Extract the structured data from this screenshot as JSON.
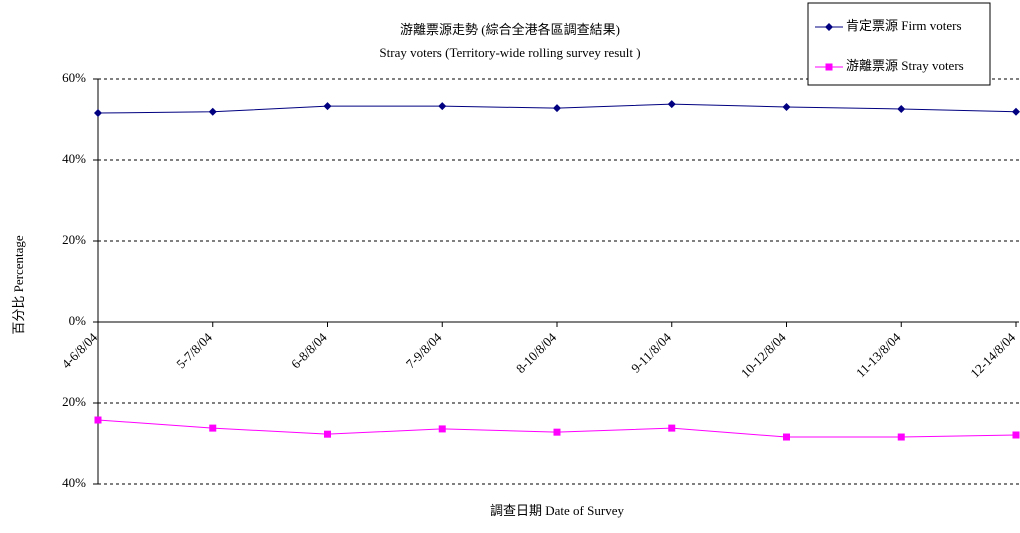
{
  "chart_data": {
    "type": "line",
    "title": "游離票源走勢 (綜合全港各區調查結果)",
    "subtitle": "Stray voters (Territory-wide rolling survey result )",
    "y_label": "百分比 Percentage",
    "x_label": "調查日期 Date of Survey",
    "categories": [
      "4-6/8/04",
      "5-7/8/04",
      "6-8/8/04",
      "7-9/8/04",
      "8-10/8/04",
      "9-11/8/04",
      "10-12/8/04",
      "11-13/8/04",
      "12-14/8/04"
    ],
    "series": [
      {
        "name": "肯定票源 Firm voters",
        "color": "#000080",
        "marker": "diamond",
        "values": [
          51.6,
          51.9,
          53.3,
          53.3,
          52.8,
          53.8,
          53.1,
          52.6,
          51.9
        ]
      },
      {
        "name": "游離票源 Stray voters",
        "color": "#ff00ff",
        "marker": "square",
        "values": [
          -24.2,
          -26.2,
          -27.7,
          -26.4,
          -27.2,
          -26.2,
          -28.4,
          -28.4,
          -27.9
        ]
      }
    ],
    "ylim": [
      -40,
      60
    ],
    "yticks": [
      {
        "value": 60,
        "label": "60%"
      },
      {
        "value": 40,
        "label": "40%"
      },
      {
        "value": 20,
        "label": "20%"
      },
      {
        "value": 0,
        "label": "0%"
      },
      {
        "value": -20,
        "label": "20%"
      },
      {
        "value": -40,
        "label": "40%"
      }
    ],
    "grid": true,
    "legend": "upper right"
  }
}
